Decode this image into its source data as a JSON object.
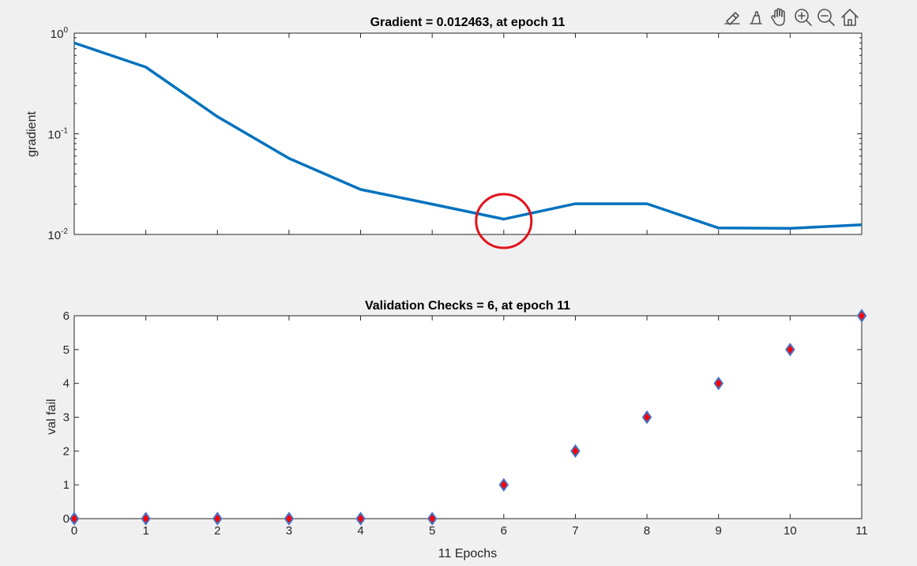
{
  "toolbar": {
    "icons": [
      "brush-data-icon",
      "eraser-icon",
      "pan-hand-icon",
      "zoom-in-icon",
      "zoom-out-icon",
      "home-icon"
    ]
  },
  "annotation": {
    "type": "circle",
    "color": "#e0141b",
    "around_epoch": 6
  },
  "chart_data": [
    {
      "type": "line",
      "title": "Gradient = 0.012463, at epoch 11",
      "xlabel": "",
      "ylabel": "gradient",
      "yscale": "log",
      "xlim": [
        0,
        11
      ],
      "ylim": [
        0.01,
        1
      ],
      "x_ticks": [
        0,
        1,
        2,
        3,
        4,
        5,
        6,
        7,
        8,
        9,
        10,
        11
      ],
      "y_ticks": [
        {
          "value": 1,
          "base": "10",
          "exp": "0"
        },
        {
          "value": 0.1,
          "base": "10",
          "exp": "-1"
        },
        {
          "value": 0.01,
          "base": "10",
          "exp": "-2"
        }
      ],
      "x_tick_labels_shown": false,
      "grid": false,
      "color": "#0072bd",
      "series": [
        {
          "x": [
            0,
            1,
            2,
            3,
            4,
            5,
            6,
            7,
            8,
            9,
            10,
            11
          ],
          "y": [
            0.8,
            0.46,
            0.148,
            0.057,
            0.028,
            0.02,
            0.0142,
            0.0202,
            0.0202,
            0.0116,
            0.0115,
            0.012463
          ]
        }
      ]
    },
    {
      "type": "scatter",
      "title": "Validation Checks = 6, at epoch 11",
      "xlabel": "11 Epochs",
      "ylabel": "val fail",
      "xlim": [
        0,
        11
      ],
      "ylim": [
        0,
        6
      ],
      "x_ticks": [
        0,
        1,
        2,
        3,
        4,
        5,
        6,
        7,
        8,
        9,
        10,
        11
      ],
      "y_ticks": [
        0,
        1,
        2,
        3,
        4,
        5,
        6
      ],
      "grid": false,
      "marker": "diamond",
      "marker_fill": "#ff0000",
      "marker_edge": "#4472c4",
      "series": [
        {
          "x": [
            0,
            1,
            2,
            3,
            4,
            5,
            6,
            7,
            8,
            9,
            10,
            11
          ],
          "y": [
            0,
            0,
            0,
            0,
            0,
            0,
            1,
            2,
            3,
            4,
            5,
            6
          ]
        }
      ]
    }
  ]
}
